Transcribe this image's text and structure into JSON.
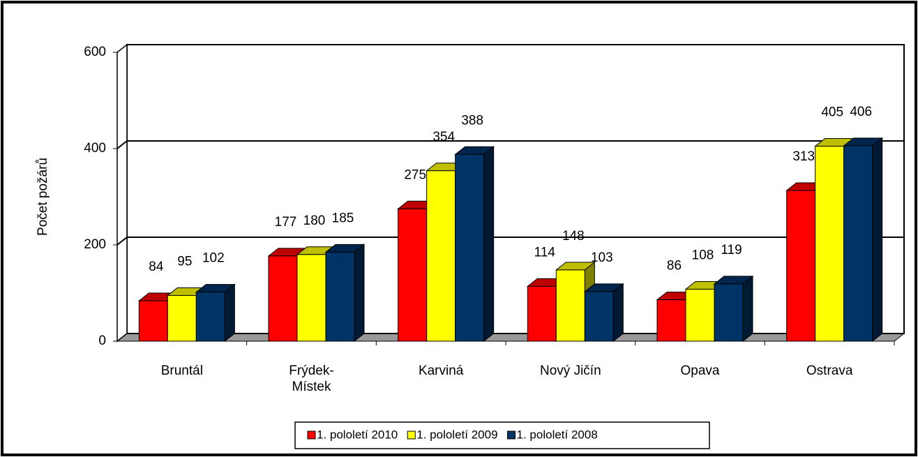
{
  "chart_data": {
    "type": "bar3d",
    "y_label": "Počet požárů",
    "categories": [
      "Bruntál",
      "Frýdek-Místek",
      "Karviná",
      "Nový Jičín",
      "Opava",
      "Ostrava"
    ],
    "series": [
      {
        "name": "1. pololetí 2010",
        "color": "#ff0000",
        "values": [
          84,
          177,
          275,
          114,
          86,
          313
        ]
      },
      {
        "name": "1. pololetí 2009",
        "color": "#ffff00",
        "values": [
          95,
          180,
          354,
          148,
          108,
          405
        ]
      },
      {
        "name": "1. pololetí 2008",
        "color": "#003366",
        "values": [
          102,
          185,
          388,
          103,
          119,
          406
        ]
      }
    ],
    "ylim": [
      0,
      600
    ],
    "yticks": [
      0,
      200,
      400,
      600
    ],
    "grid": true,
    "legend": "bottom"
  }
}
